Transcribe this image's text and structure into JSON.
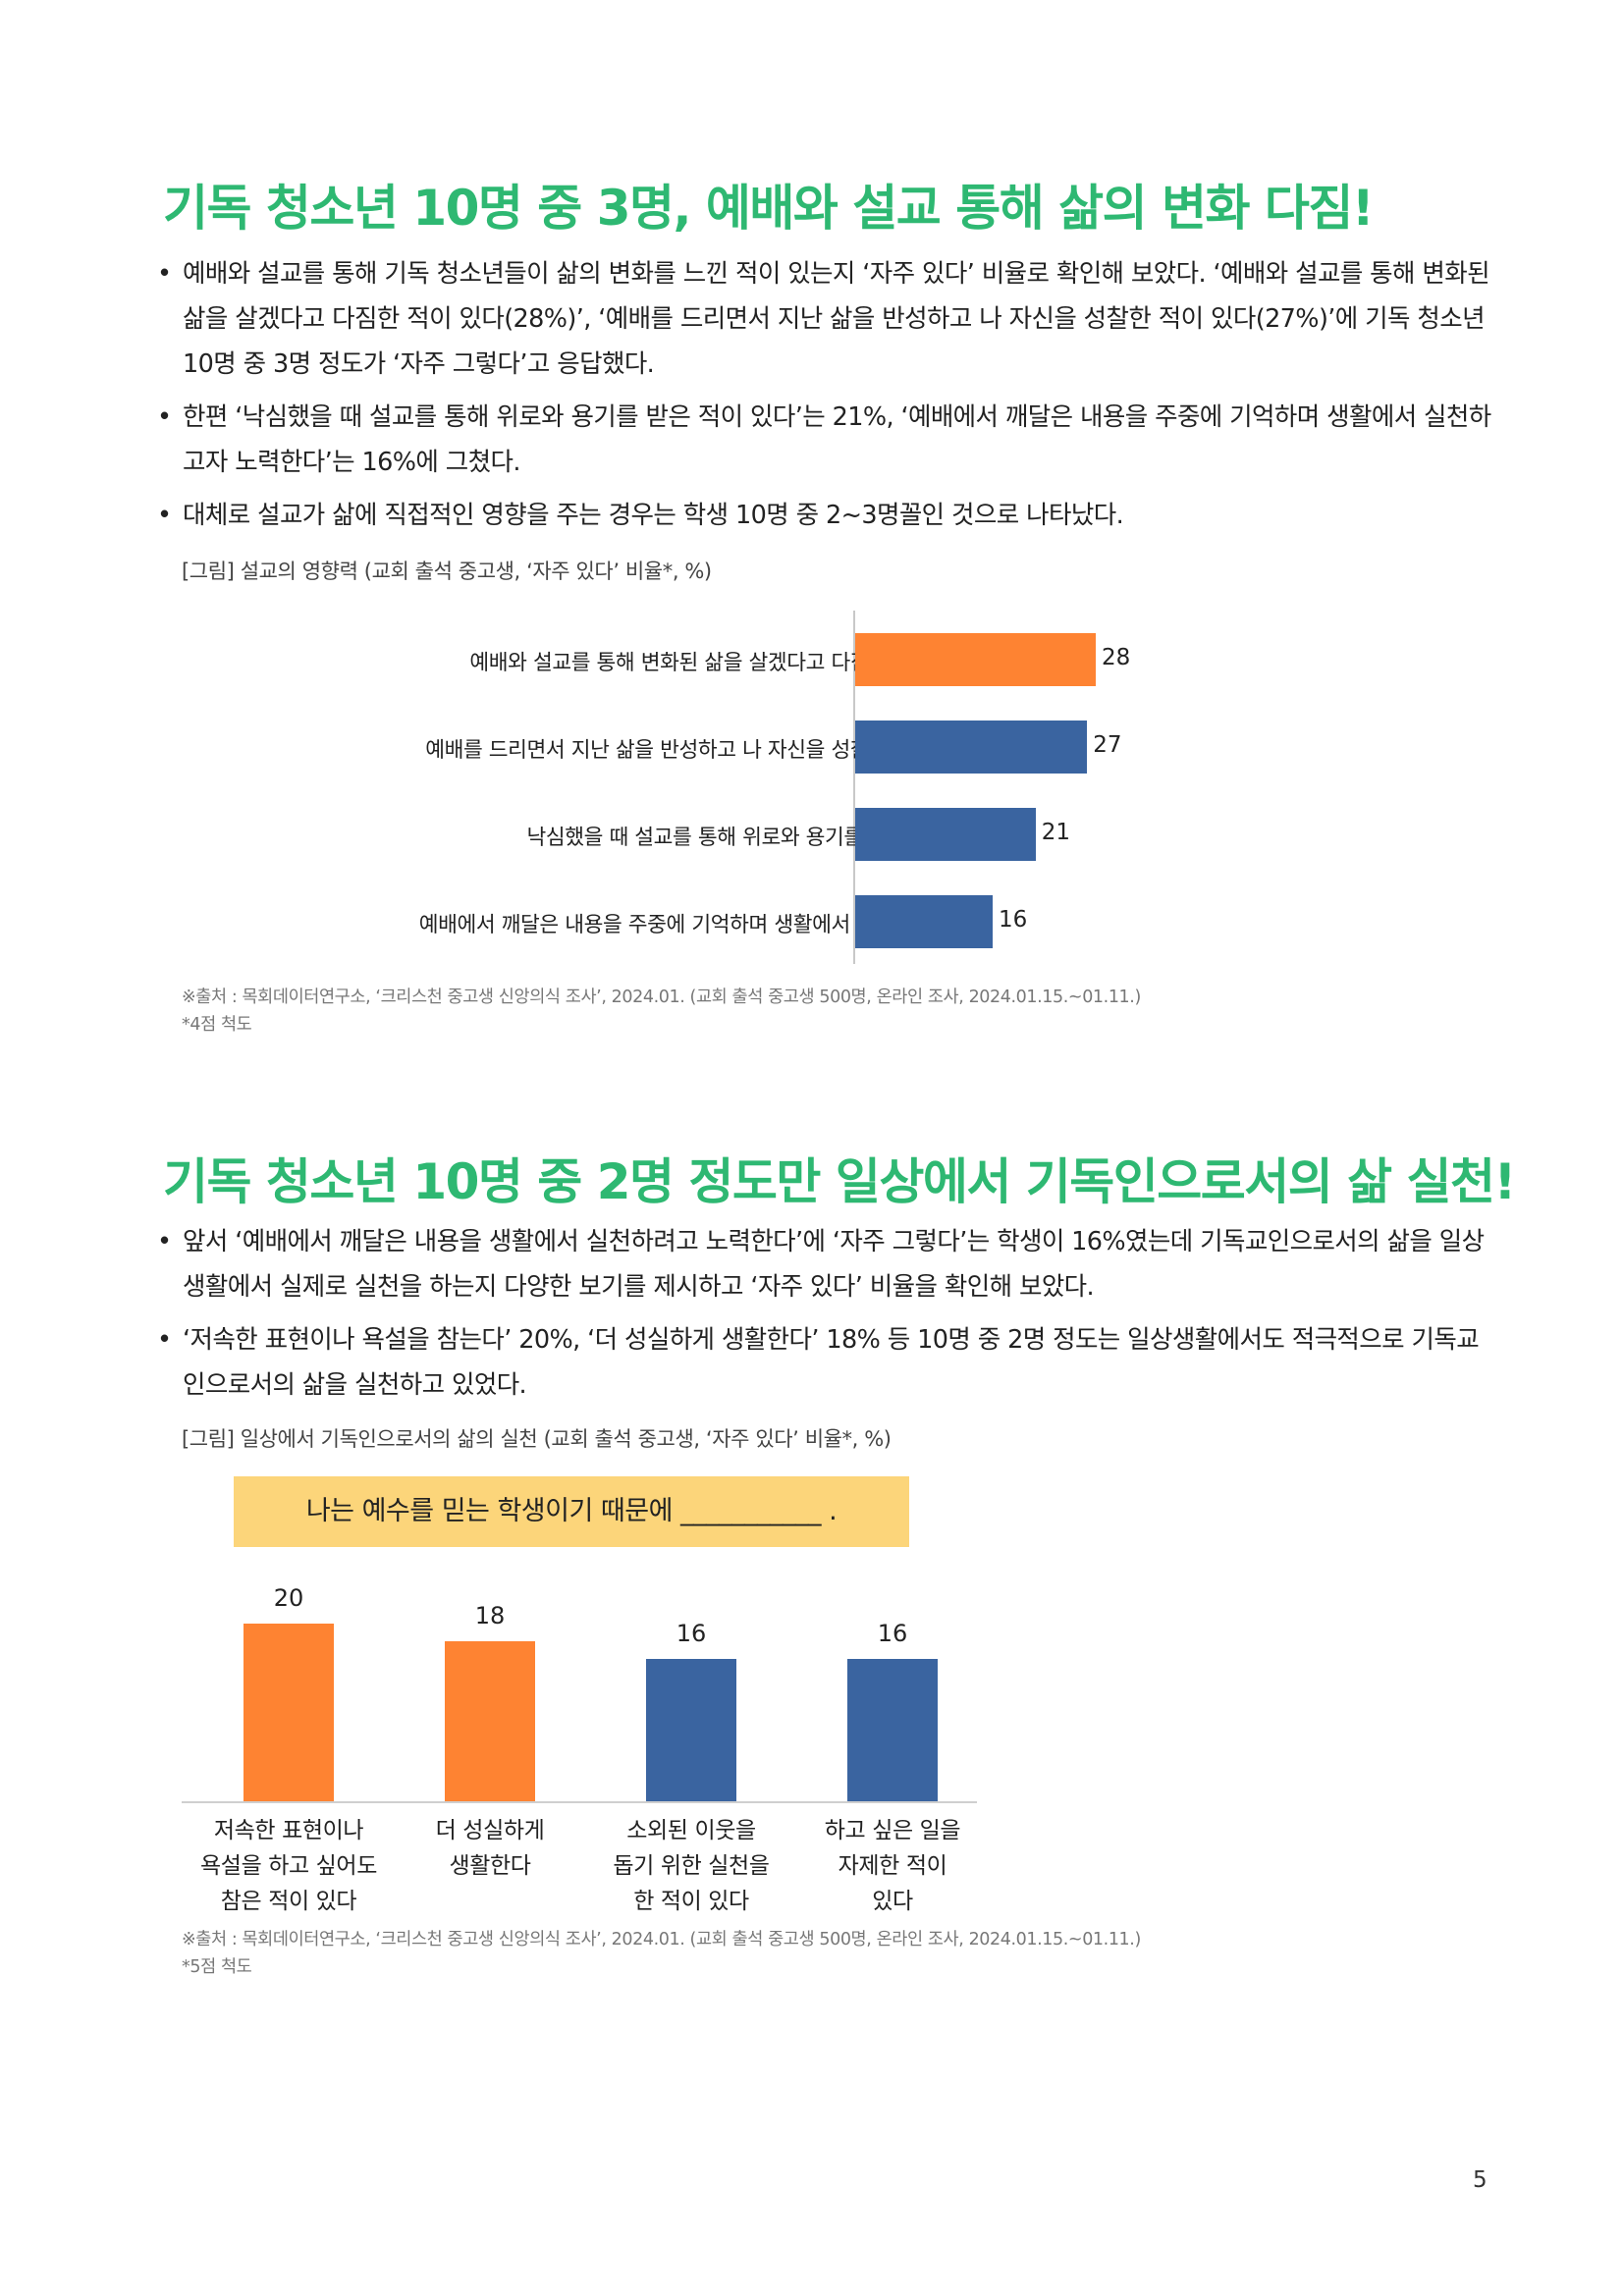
{
  "section1": {
    "title": "기독 청소년 10명 중 3명, 예배와 설교 통해 삶의 변화 다짐!",
    "bullets": [
      "예배와 설교를 통해 기독 청소년들이 삶의 변화를 느낀 적이 있는지 ‘자주 있다’ 비율로 확인해 보았다. ‘예배와 설교를 통해 변화된 삶을 살겠다고 다짐한 적이 있다(28%)’, ‘예배를 드리면서 지난 삶을 반성하고 나 자신을 성찰한 적이 있다(27%)’에 기독 청소년 10명 중 3명 정도가 ‘자주 그렇다’고 응답했다.",
      "한편 ‘낙심했을 때 설교를 통해 위로와 용기를 받은 적이 있다’는 21%, ‘예배에서 깨달은 내용을 주중에 기억하며 생활에서 실천하고자 노력한다’는 16%에 그쳤다.",
      "대체로 설교가 삶에 직접적인 영향을 주는 경우는 학생 10명 중 2~3명꼴인 것으로 나타났다."
    ],
    "caption": "[그림] 설교의 영향력 (교회 출석 중고생, ‘자주 있다’ 비율*, %)",
    "source_line1": "※출처 : 목회데이터연구소, ‘크리스천 중고생 신앙의식 조사’, 2024.01. (교회 출석 중고생 500명, 온라인 조사, 2024.01.15.~01.11.)",
    "source_line2": "*4점 척도"
  },
  "section2": {
    "title": "기독 청소년 10명 중 2명 정도만 일상에서 기독인으로서의 삶 실천!",
    "bullets": [
      "앞서 ‘예배에서 깨달은 내용을 생활에서 실천하려고 노력한다’에 ‘자주 그렇다’는 학생이 16%였는데 기독교인으로서의 삶을 일상생활에서 실제로 실천을 하는지 다양한 보기를 제시하고 ‘자주 있다’ 비율을 확인해 보았다.",
      "‘저속한 표현이나 욕설을 참는다’ 20%, ‘더 성실하게 생활한다’ 18% 등 10명 중 2명 정도는 일상생활에서도 적극적으로 기독교인으로서의 삶을 실천하고 있었다."
    ],
    "caption": "[그림] 일상에서 기독인으로서의 삶의 실천 (교회 출석 중고생, ‘자주 있다’ 비율*, %)",
    "banner": "나는 예수를 믿는 학생이기 때문에 ___________ .",
    "source_line1": "※출처 : 목회데이터연구소, ‘크리스천 중고생 신앙의식 조사’, 2024.01. (교회 출석 중고생 500명, 온라인 조사, 2024.01.15.~01.11.)",
    "source_line2": "*5점 척도"
  },
  "page_number": "5",
  "colors": {
    "orange": "#fe8332",
    "blue": "#3a64a0",
    "green": "#2eb872",
    "banner": "#fcd57a"
  },
  "chart_data": [
    {
      "type": "bar",
      "orientation": "horizontal",
      "categories": [
        "예배와 설교를 통해 변화된 삶을 살겠다고 다짐한 적이 있다",
        "예배를 드리면서 지난 삶을 반성하고 나 자신을 성찰한 적이 있다",
        "낙심했을 때 설교를 통해 위로와 용기를 받은 적 있다",
        "예배에서 깨달은 내용을 주중에 기억하며 생활에서 실천 노력한다"
      ],
      "values": [
        28,
        27,
        21,
        16
      ],
      "value_labels": [
        "28",
        "27",
        "21",
        "16"
      ],
      "bar_colors": [
        "#fe8332",
        "#3a64a0",
        "#3a64a0",
        "#3a64a0"
      ],
      "xlim": [
        0,
        30
      ]
    },
    {
      "type": "bar",
      "orientation": "vertical",
      "categories": [
        "저속한 표현이나\n욕설을 하고 싶어도\n참은 적이 있다",
        "더 성실하게\n생활한다",
        "소외된 이웃을\n돕기 위한 실천을\n한 적이 있다",
        "하고 싶은 일을\n자제한 적이\n있다"
      ],
      "values": [
        20,
        18,
        16,
        16
      ],
      "value_labels": [
        "20",
        "18",
        "16",
        "16"
      ],
      "bar_colors": [
        "#fe8332",
        "#fe8332",
        "#3a64a0",
        "#3a64a0"
      ],
      "ylim": [
        0,
        25
      ]
    }
  ]
}
